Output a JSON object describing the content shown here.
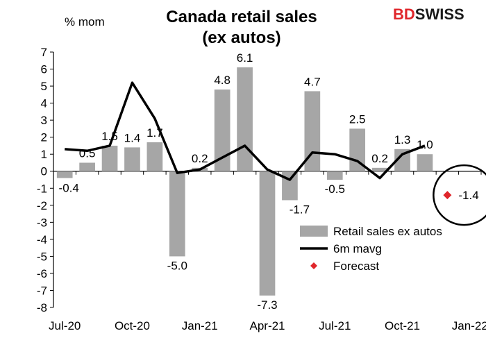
{
  "brand": {
    "text_bd": "BD",
    "text_swiss": "SWISS",
    "accent": "#e0262b",
    "dark": "#1a1a1a"
  },
  "chart_data": {
    "type": "bar",
    "title_line1": "Canada retail sales",
    "title_line2": "(ex autos)",
    "ylabel": "% mom",
    "ylim": [
      -8,
      7
    ],
    "yticks": [
      -8,
      -7,
      -6,
      -5,
      -4,
      -3,
      -2,
      -1,
      0,
      1,
      2,
      3,
      4,
      5,
      6,
      7
    ],
    "months": [
      "Jul-20",
      "Aug-20",
      "Sep-20",
      "Oct-20",
      "Nov-20",
      "Dec-20",
      "Jan-21",
      "Feb-21",
      "Mar-21",
      "Apr-21",
      "May-21",
      "Jun-21",
      "Jul-21",
      "Aug-21",
      "Sep-21",
      "Oct-21",
      "Nov-21",
      "Dec-21",
      "Jan-22"
    ],
    "xtick_labels": [
      {
        "index": 0,
        "label": "Jul-20"
      },
      {
        "index": 3,
        "label": "Oct-20"
      },
      {
        "index": 6,
        "label": "Jan-21"
      },
      {
        "index": 9,
        "label": "Apr-21"
      },
      {
        "index": 12,
        "label": "Jul-21"
      },
      {
        "index": 15,
        "label": "Oct-21"
      },
      {
        "index": 18,
        "label": "Jan-22"
      }
    ],
    "series": [
      {
        "name": "Retail sales ex autos",
        "type": "bar",
        "color": "#a6a6a6",
        "values": [
          -0.4,
          0.5,
          1.5,
          1.4,
          1.7,
          -5.0,
          0.2,
          4.8,
          6.1,
          -7.3,
          -1.7,
          4.7,
          -0.5,
          2.5,
          0.2,
          1.3,
          1.0,
          null,
          null
        ],
        "labels": [
          "-0.4",
          "0.5",
          "1.5",
          "1.4",
          "1.7",
          "-5.0",
          "0.2",
          "4.8",
          "6.1",
          "-7.3",
          "-1.7",
          "4.7",
          "-0.5",
          "2.5",
          "0.2",
          "1.3",
          "1.0",
          "",
          ""
        ]
      },
      {
        "name": "6m mavg",
        "type": "line",
        "color": "#000000",
        "values": [
          1.3,
          1.2,
          1.5,
          5.2,
          3.1,
          -0.1,
          0.1,
          0.8,
          1.5,
          0.1,
          -0.5,
          1.1,
          1.0,
          0.6,
          -0.4,
          1.0,
          1.5,
          null,
          null
        ]
      },
      {
        "name": "Forecast",
        "type": "point",
        "color": "#e0262b",
        "values": [
          null,
          null,
          null,
          null,
          null,
          null,
          null,
          null,
          null,
          null,
          null,
          null,
          null,
          null,
          null,
          null,
          null,
          -1.4,
          null
        ],
        "labels": [
          "",
          "",
          "",
          "",
          "",
          "",
          "",
          "",
          "",
          "",
          "",
          "",
          "",
          "",
          "",
          "",
          "",
          "-1.4",
          ""
        ]
      }
    ],
    "legend": {
      "placement": "bottom-right",
      "items": [
        "Retail sales ex autos",
        "6m mavg",
        "Forecast"
      ]
    },
    "annotation": "circle around forecast",
    "grid": false
  }
}
